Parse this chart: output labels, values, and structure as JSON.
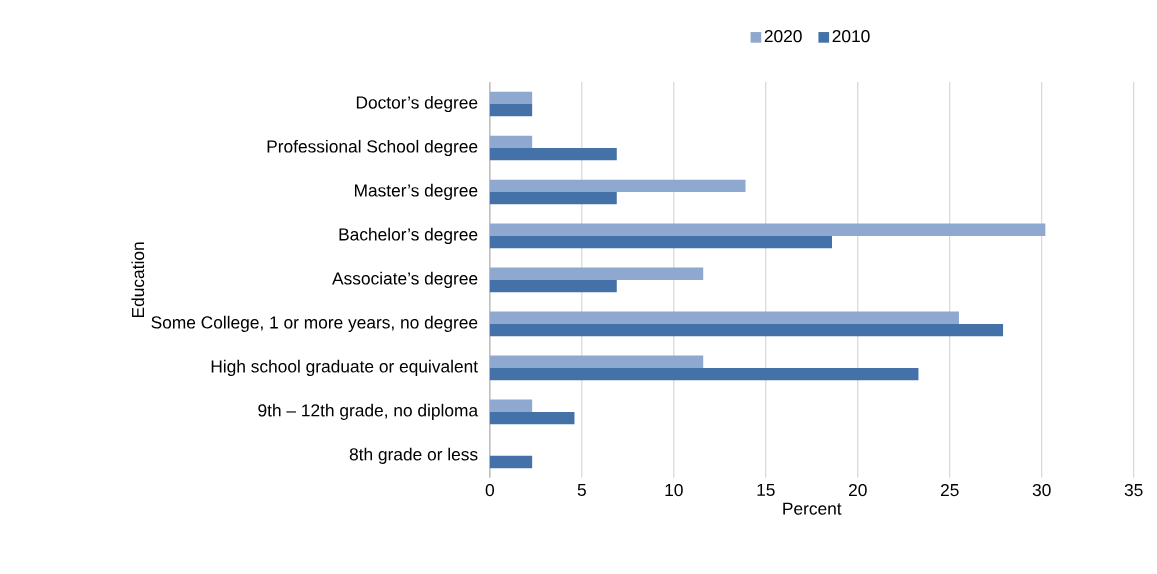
{
  "chart_data": {
    "type": "bar",
    "orientation": "horizontal",
    "xlabel": "Percent",
    "ylabel": "Education",
    "categories": [
      "Doctor’s degree",
      "Professional School degree",
      "Master’s degree",
      "Bachelor’s degree",
      "Associate’s degree",
      "Some College, 1 or more years, no degree",
      "High school graduate or equivalent",
      "9th – 12th grade, no diploma",
      "8th grade or less"
    ],
    "series": [
      {
        "name": "2020",
        "color": "#8fa8d0",
        "values": [
          2.3,
          2.3,
          13.9,
          30.2,
          11.6,
          25.5,
          11.6,
          2.3,
          0
        ]
      },
      {
        "name": "2010",
        "color": "#4472a8",
        "values": [
          2.3,
          6.9,
          6.9,
          18.6,
          6.9,
          27.9,
          23.3,
          4.6,
          2.3
        ]
      }
    ],
    "xlim": [
      0,
      35
    ],
    "xticks": [
      0,
      5,
      10,
      15,
      20,
      25,
      30,
      35
    ],
    "grid": "x",
    "legend": "top"
  }
}
